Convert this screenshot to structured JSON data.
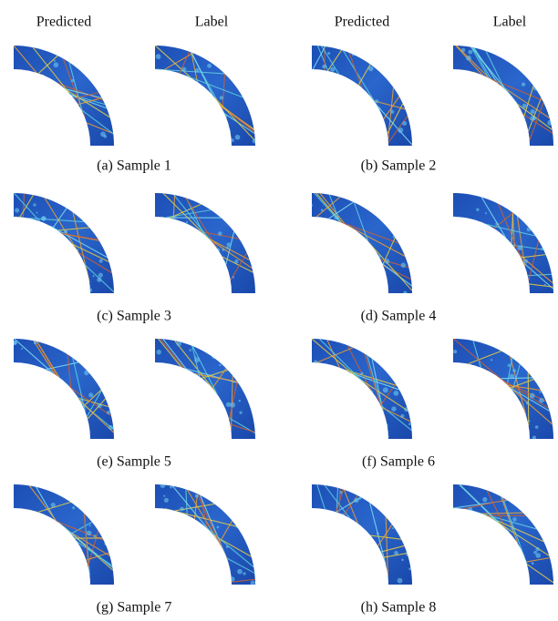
{
  "headers": [
    [
      "Predicted",
      "Label"
    ],
    [
      "Predicted",
      "Label"
    ]
  ],
  "panels": [
    {
      "caption": "(a) Sample 1"
    },
    {
      "caption": "(b) Sample 2"
    },
    {
      "caption": "(c) Sample 3"
    },
    {
      "caption": "(d) Sample 4"
    },
    {
      "caption": "(e) Sample 5"
    },
    {
      "caption": "(f) Sample 6"
    },
    {
      "caption": "(g) Sample 7"
    },
    {
      "caption": "(h) Sample 8"
    }
  ]
}
